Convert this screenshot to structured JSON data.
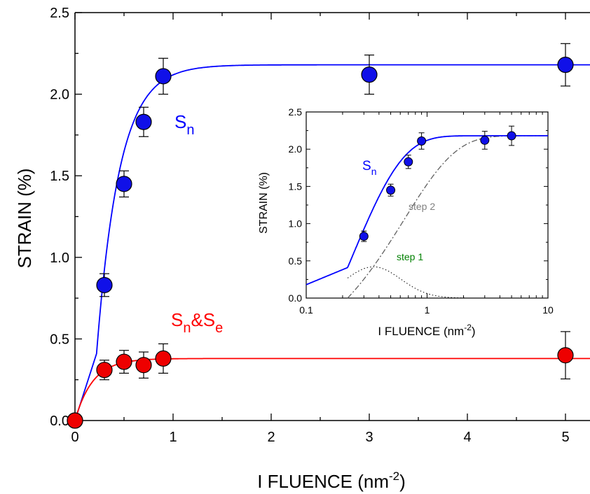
{
  "chart_data": [
    {
      "type": "scatter",
      "xlabel": "I FLUENCE",
      "xlabel_unit_open": "(nm",
      "xlabel_unit_exp": "-2",
      "xlabel_unit_close": ")",
      "ylabel": "STRAIN (%)",
      "xlim": [
        0,
        5.25
      ],
      "ylim": [
        0,
        2.5
      ],
      "x_ticks": [
        0,
        1,
        2,
        3,
        4,
        5
      ],
      "y_ticks": [
        0.0,
        0.5,
        1.0,
        1.5,
        2.0,
        2.5
      ],
      "x_tick_labels": [
        "0",
        "1",
        "2",
        "3",
        "4",
        "5"
      ],
      "y_tick_labels": [
        "0.0",
        "0.5",
        "1.0",
        "1.5",
        "2.0",
        "2.5"
      ],
      "grid": false,
      "series": [
        {
          "name": "Sn",
          "label_main": "S",
          "label_sub": "n",
          "color": "#0000ff",
          "marker_fill": "#1010e8",
          "x": [
            0,
            0.3,
            0.5,
            0.7,
            0.9,
            3.0,
            5.0
          ],
          "y": [
            0.0,
            0.83,
            1.45,
            1.83,
            2.11,
            2.12,
            2.18
          ],
          "err": [
            0.0,
            0.07,
            0.08,
            0.09,
            0.11,
            0.12,
            0.13
          ],
          "fit": {
            "plateau": 2.18,
            "onset": 0.22,
            "onset_value": 0.41,
            "rate": 4.3
          }
        },
        {
          "name": "Sn&Se",
          "label_main": "S",
          "label_sub": "n",
          "label_mid": "&S",
          "label_sub2": "e",
          "color": "#ff0000",
          "marker_fill": "#ee0000",
          "x": [
            0,
            0.3,
            0.5,
            0.7,
            0.9,
            5.0
          ],
          "y": [
            0.0,
            0.31,
            0.36,
            0.34,
            0.38,
            0.4
          ],
          "err": [
            0.0,
            0.06,
            0.07,
            0.08,
            0.09,
            0.145
          ],
          "fit": {
            "plateau": 0.38,
            "rate": 5.5
          }
        }
      ]
    },
    {
      "type": "scatter",
      "inset": true,
      "xscale": "log",
      "xlabel": "I FLUENCE",
      "xlabel_unit_open": "(nm",
      "xlabel_unit_exp": "-2",
      "xlabel_unit_close": ")",
      "ylabel": "STRAIN (%)",
      "xlim": [
        0.1,
        10
      ],
      "ylim": [
        0,
        2.5
      ],
      "x_ticks": [
        0.1,
        1,
        10
      ],
      "x_tick_labels": [
        "0.1",
        "1",
        "10"
      ],
      "y_ticks": [
        0.0,
        0.5,
        1.0,
        1.5,
        2.0,
        2.5
      ],
      "y_tick_labels": [
        "0.0",
        "0.5",
        "1.0",
        "1.5",
        "2.0",
        "2.5"
      ],
      "series": [
        {
          "name": "Sn",
          "label_main": "S",
          "label_sub": "n",
          "color": "#0000ff",
          "x": [
            0.3,
            0.5,
            0.7,
            0.9,
            3.0,
            5.0
          ],
          "y": [
            0.83,
            1.45,
            1.83,
            2.11,
            2.12,
            2.18
          ],
          "err": [
            0.07,
            0.08,
            0.09,
            0.11,
            0.12,
            0.13
          ]
        }
      ],
      "annotations": [
        {
          "text": "step 2",
          "color": "#808080",
          "style": "dash-dot"
        },
        {
          "text": "step 1",
          "color": "#008000",
          "style": "dotted"
        }
      ]
    }
  ]
}
